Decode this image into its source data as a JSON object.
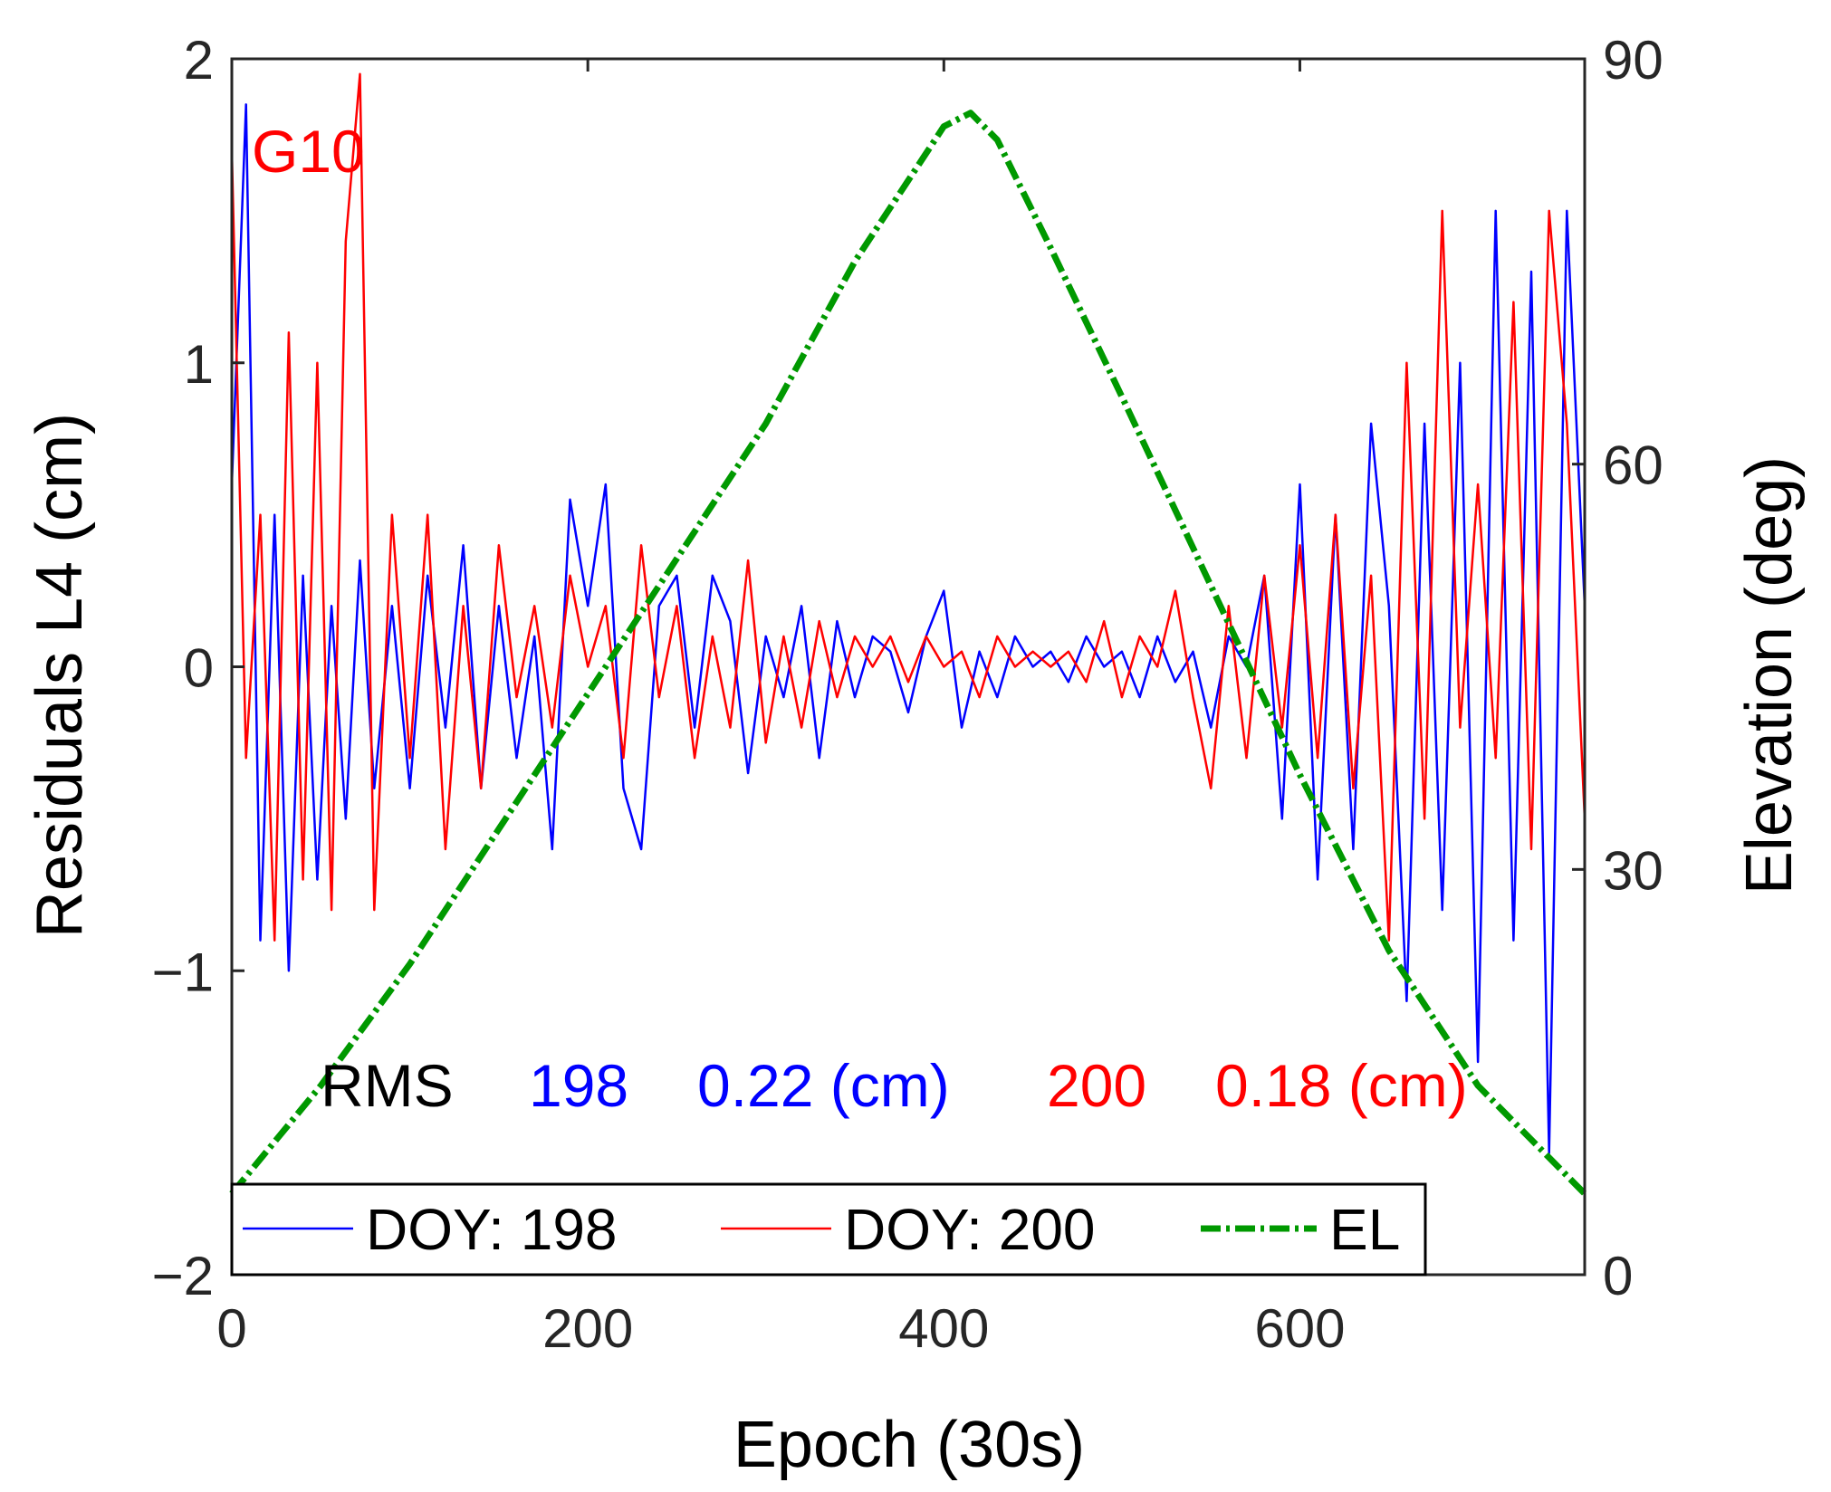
{
  "chart_data": {
    "type": "line",
    "label": "G10",
    "xlabel": "Epoch (30s)",
    "ylabel": "Residuals L4 (cm)",
    "y2label": "Elevation (deg)",
    "xlim": [
      0,
      760
    ],
    "ylim": [
      -2,
      2
    ],
    "y2lim": [
      0,
      90
    ],
    "xticks": [
      "0",
      "200",
      "400",
      "600"
    ],
    "xtick_values": [
      0,
      200,
      400,
      600
    ],
    "yticks": [
      "−2",
      "−1",
      "0",
      "1",
      "2"
    ],
    "ytick_values": [
      -2,
      -1,
      0,
      1,
      2
    ],
    "y2ticks": [
      "0",
      "30",
      "60",
      "90"
    ],
    "y2tick_values": [
      0,
      30,
      60,
      90
    ],
    "rms": {
      "label": "RMS",
      "doy1": "198",
      "val1": "0.22 (cm)",
      "doy2": "200",
      "val2": "0.18 (cm)"
    },
    "legend": {
      "s1": "DOY: 198",
      "s2": "DOY: 200",
      "s3": "EL"
    },
    "series": [
      {
        "name": "DOY: 198",
        "color": "#0000ff",
        "axis": "left",
        "x": [
          0,
          8,
          16,
          24,
          32,
          40,
          48,
          56,
          64,
          72,
          80,
          90,
          100,
          110,
          120,
          130,
          140,
          150,
          160,
          170,
          180,
          190,
          200,
          210,
          220,
          230,
          240,
          250,
          260,
          270,
          280,
          290,
          300,
          310,
          320,
          330,
          340,
          350,
          360,
          370,
          380,
          390,
          400,
          410,
          420,
          430,
          440,
          450,
          460,
          470,
          480,
          490,
          500,
          510,
          520,
          530,
          540,
          550,
          560,
          570,
          580,
          590,
          600,
          610,
          620,
          630,
          640,
          650,
          660,
          670,
          680,
          690,
          700,
          710,
          720,
          730,
          740,
          750,
          760
        ],
        "values": [
          0.6,
          1.85,
          -0.9,
          0.5,
          -1.0,
          0.3,
          -0.7,
          0.2,
          -0.5,
          0.35,
          -0.4,
          0.2,
          -0.4,
          0.3,
          -0.2,
          0.4,
          -0.4,
          0.2,
          -0.3,
          0.1,
          -0.6,
          0.55,
          0.2,
          0.6,
          -0.4,
          -0.6,
          0.2,
          0.3,
          -0.2,
          0.3,
          0.15,
          -0.35,
          0.1,
          -0.1,
          0.2,
          -0.3,
          0.15,
          -0.1,
          0.1,
          0.05,
          -0.15,
          0.1,
          0.25,
          -0.2,
          0.05,
          -0.1,
          0.1,
          0.0,
          0.05,
          -0.05,
          0.1,
          0.0,
          0.05,
          -0.1,
          0.1,
          -0.05,
          0.05,
          -0.2,
          0.1,
          0.0,
          0.3,
          -0.5,
          0.6,
          -0.7,
          0.5,
          -0.6,
          0.8,
          0.2,
          -1.1,
          0.8,
          -0.8,
          1.0,
          -1.3,
          1.5,
          -0.9,
          1.3,
          -1.6,
          1.5,
          0.2
        ]
      },
      {
        "name": "DOY: 200",
        "color": "#ff0000",
        "axis": "left",
        "x": [
          0,
          8,
          16,
          24,
          32,
          40,
          48,
          56,
          64,
          72,
          80,
          90,
          100,
          110,
          120,
          130,
          140,
          150,
          160,
          170,
          180,
          190,
          200,
          210,
          220,
          230,
          240,
          250,
          260,
          270,
          280,
          290,
          300,
          310,
          320,
          330,
          340,
          350,
          360,
          370,
          380,
          390,
          400,
          410,
          420,
          430,
          440,
          450,
          460,
          470,
          480,
          490,
          500,
          510,
          520,
          530,
          540,
          550,
          560,
          570,
          580,
          590,
          600,
          610,
          620,
          630,
          640,
          650,
          660,
          670,
          680,
          690,
          700,
          710,
          720,
          730,
          740,
          750,
          760
        ],
        "values": [
          1.7,
          -0.3,
          0.5,
          -0.9,
          1.1,
          -0.7,
          1.0,
          -0.8,
          1.4,
          1.95,
          -0.8,
          0.5,
          -0.3,
          0.5,
          -0.6,
          0.2,
          -0.4,
          0.4,
          -0.1,
          0.2,
          -0.2,
          0.3,
          0.0,
          0.2,
          -0.3,
          0.4,
          -0.1,
          0.2,
          -0.3,
          0.1,
          -0.2,
          0.35,
          -0.25,
          0.1,
          -0.2,
          0.15,
          -0.1,
          0.1,
          0.0,
          0.1,
          -0.05,
          0.1,
          0.0,
          0.05,
          -0.1,
          0.1,
          0.0,
          0.05,
          0.0,
          0.05,
          -0.05,
          0.15,
          -0.1,
          0.1,
          0.0,
          0.25,
          -0.1,
          -0.4,
          0.2,
          -0.3,
          0.3,
          -0.2,
          0.4,
          -0.3,
          0.5,
          -0.4,
          0.3,
          -0.9,
          1.0,
          -0.5,
          1.5,
          -0.2,
          0.6,
          -0.3,
          1.2,
          -0.6,
          1.5,
          0.8,
          -0.5
        ]
      },
      {
        "name": "EL",
        "color": "#009900",
        "axis": "right",
        "x": [
          0,
          50,
          100,
          150,
          200,
          250,
          300,
          350,
          380,
          400,
          415,
          430,
          460,
          500,
          550,
          600,
          650,
          700,
          760
        ],
        "values": [
          6,
          14,
          23,
          33,
          43,
          53,
          63,
          75,
          81,
          85,
          86,
          84,
          76,
          65,
          51,
          37,
          24,
          14,
          6
        ]
      }
    ]
  }
}
